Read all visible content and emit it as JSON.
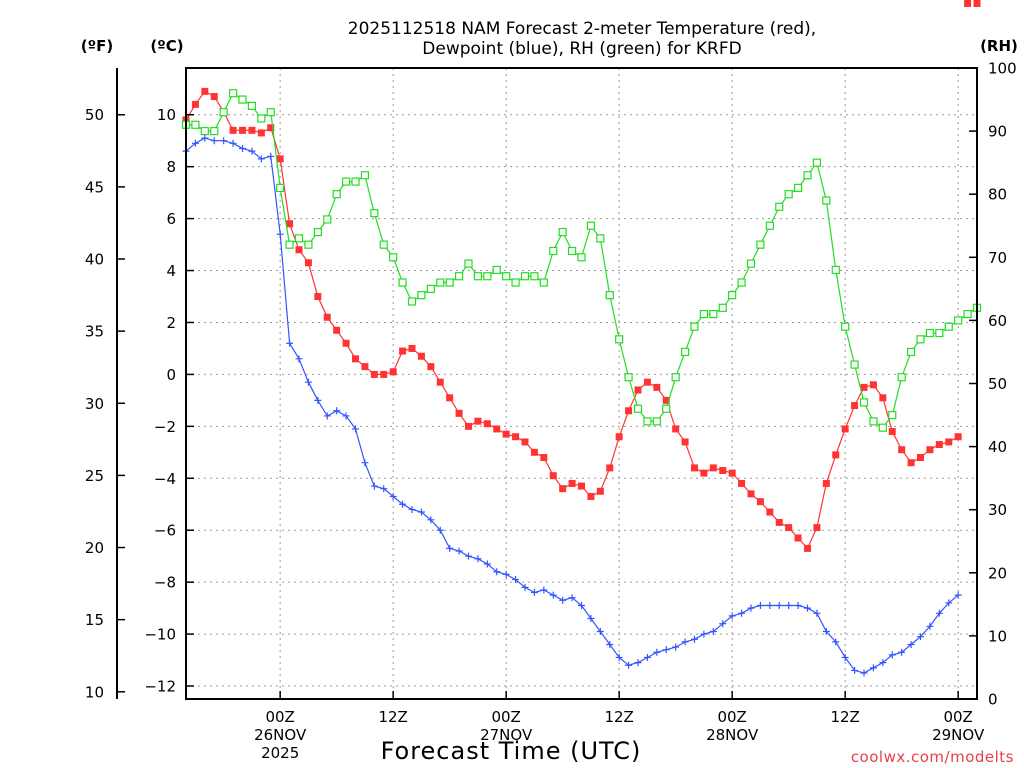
{
  "chart_data": {
    "type": "line",
    "title": "2025112518 NAM Forecast 2-meter Temperature (red), Dewpoint (blue), RH (green) for KRFD",
    "title_lines": [
      "2025112518 NAM Forecast 2-meter Temperature (red),",
      "Dewpoint (blue), RH (green) for KRFD"
    ],
    "units": {
      "fahrenheit": "(ºF)",
      "celsius": "(ºC)",
      "rh": "(RH)"
    },
    "xlabel": "Forecast Time (UTC)",
    "credit": "coolwx.com/modelts",
    "x_unit": "forecast hour",
    "xlim": [
      -4,
      80
    ],
    "ylim_celsius": [
      -12.5,
      11.8
    ],
    "ylim_rh": [
      0,
      100
    ],
    "grid": true,
    "ticks": {
      "celsius": [
        10,
        8,
        6,
        4,
        2,
        0,
        -2,
        -4,
        -6,
        -8,
        -10,
        -12
      ],
      "fahrenheit": [
        50,
        45,
        40,
        35,
        30,
        25,
        20,
        15,
        10
      ],
      "rh": [
        100,
        90,
        80,
        70,
        60,
        50,
        40,
        30,
        20,
        10,
        0
      ],
      "x_hours": [
        6,
        18,
        30,
        42,
        54,
        66,
        78
      ],
      "x_labels": [
        {
          "hour": 6,
          "lines": [
            "00Z",
            "26NOV",
            "2025"
          ]
        },
        {
          "hour": 18,
          "lines": [
            "12Z"
          ]
        },
        {
          "hour": 30,
          "lines": [
            "00Z",
            "27NOV"
          ]
        },
        {
          "hour": 42,
          "lines": [
            "12Z"
          ]
        },
        {
          "hour": 54,
          "lines": [
            "00Z",
            "28NOV"
          ]
        },
        {
          "hour": 66,
          "lines": [
            "12Z"
          ]
        },
        {
          "hour": 78,
          "lines": [
            "00Z",
            "29NOV"
          ]
        }
      ]
    },
    "hours": [
      -4,
      -3,
      -2,
      -1,
      0,
      1,
      2,
      3,
      4,
      5,
      6,
      7,
      8,
      9,
      10,
      11,
      12,
      13,
      14,
      15,
      16,
      17,
      18,
      19,
      20,
      21,
      22,
      23,
      24,
      25,
      26,
      27,
      28,
      29,
      30,
      31,
      32,
      33,
      34,
      35,
      36,
      37,
      38,
      39,
      40,
      41,
      42,
      43,
      44,
      45,
      46,
      47,
      48,
      49,
      50,
      51,
      52,
      53,
      54,
      55,
      56,
      57,
      58,
      59,
      60,
      61,
      62,
      63,
      64,
      65,
      66,
      67,
      68,
      69,
      70,
      71,
      72,
      73,
      74,
      75,
      76,
      77,
      78,
      79,
      80
    ],
    "series": [
      {
        "name": "Temperature",
        "unit": "C",
        "color": "#ff3333",
        "marker": "filled-square",
        "values": [
          9.8,
          10.4,
          10.9,
          10.7,
          10.1,
          9.4,
          9.4,
          9.4,
          9.3,
          9.5,
          8.3,
          5.8,
          4.8,
          4.3,
          3.0,
          2.2,
          1.7,
          1.2,
          0.6,
          0.3,
          0.0,
          0.0,
          0.1,
          0.9,
          1.0,
          0.7,
          0.3,
          -0.3,
          -0.9,
          -1.5,
          -2.0,
          -1.8,
          -1.9,
          -2.1,
          -2.3,
          -2.4,
          -2.6,
          -3.0,
          -3.2,
          -3.9,
          -4.4,
          -4.2,
          -4.3,
          -4.7,
          -4.5,
          -3.6,
          -2.4,
          -1.4,
          -0.6,
          -0.3,
          -0.5,
          -1.0,
          -2.1,
          -2.6,
          -3.6,
          -3.8,
          -3.6,
          -3.7,
          -3.8,
          -4.2,
          -4.6,
          -4.9,
          -5.3,
          -5.7,
          -5.9,
          -6.3,
          -6.7,
          -5.9,
          -4.2,
          -3.1,
          -2.1,
          -1.2,
          -0.5,
          -0.4,
          -0.9,
          -2.2,
          -2.9,
          -3.4,
          -3.2,
          -2.9,
          -2.7,
          -2.6,
          -2.4
        ]
      },
      {
        "name": "Dewpoint",
        "unit": "C",
        "color": "#3355ff",
        "marker": "plus",
        "values": [
          8.6,
          8.9,
          9.1,
          9.0,
          9.0,
          8.9,
          8.7,
          8.6,
          8.3,
          8.4,
          5.4,
          1.2,
          0.6,
          -0.3,
          -1.0,
          -1.6,
          -1.4,
          -1.6,
          -2.1,
          -3.4,
          -4.3,
          -4.4,
          -4.7,
          -5.0,
          -5.2,
          -5.3,
          -5.6,
          -6.0,
          -6.7,
          -6.8,
          -7.0,
          -7.1,
          -7.3,
          -7.6,
          -7.7,
          -7.9,
          -8.2,
          -8.4,
          -8.3,
          -8.5,
          -8.7,
          -8.6,
          -8.9,
          -9.4,
          -9.9,
          -10.4,
          -10.9,
          -11.2,
          -11.1,
          -10.9,
          -10.7,
          -10.6,
          -10.5,
          -10.3,
          -10.2,
          -10.0,
          -9.9,
          -9.6,
          -9.3,
          -9.2,
          -9.0,
          -8.9,
          -8.9,
          -8.9,
          -8.9,
          -8.9,
          -9.0,
          -9.2,
          -9.9,
          -10.3,
          -10.9,
          -11.4,
          -11.5,
          -11.3,
          -11.1,
          -10.8,
          -10.7,
          -10.4,
          -10.1,
          -9.7,
          -9.2,
          -8.8,
          -8.5
        ]
      },
      {
        "name": "RH",
        "unit": "%",
        "color": "#22dd22",
        "marker": "open-square",
        "values": [
          91,
          91,
          90,
          90,
          93,
          96,
          95,
          94,
          92,
          93,
          81,
          72,
          73,
          72,
          74,
          76,
          80,
          82,
          82,
          83,
          77,
          72,
          70,
          66,
          63,
          64,
          65,
          66,
          66,
          67,
          69,
          67,
          67,
          68,
          67,
          66,
          67,
          67,
          66,
          71,
          74,
          71,
          70,
          75,
          73,
          64,
          57,
          51,
          46,
          44,
          44,
          46,
          51,
          55,
          59,
          61,
          61,
          62,
          64,
          66,
          69,
          72,
          75,
          78,
          80,
          81,
          83,
          85,
          79,
          68,
          59,
          53,
          47,
          44,
          43,
          45,
          51,
          55,
          57,
          58,
          58,
          59,
          60,
          61,
          62
        ]
      }
    ]
  }
}
